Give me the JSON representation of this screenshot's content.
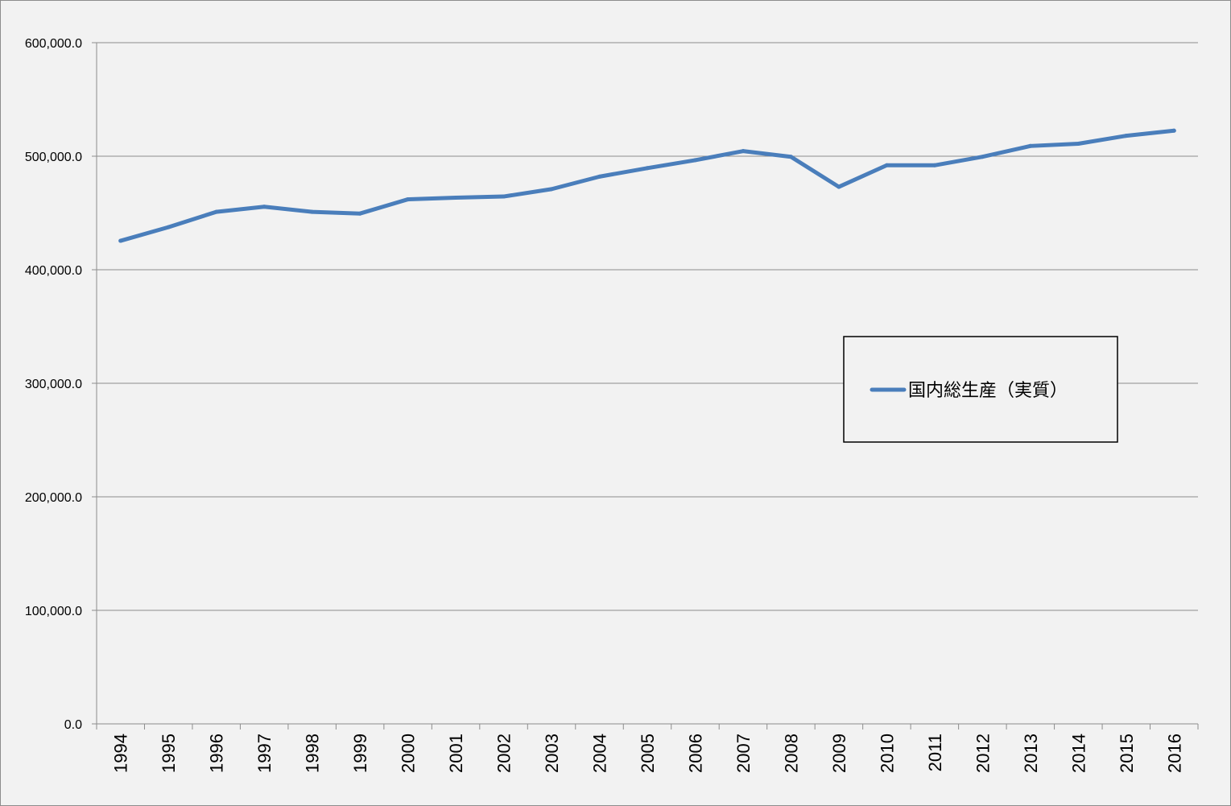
{
  "chart_data": {
    "type": "line",
    "title": "",
    "xlabel": "",
    "ylabel": "",
    "categories": [
      "1994",
      "1995",
      "1996",
      "1997",
      "1998",
      "1999",
      "2000",
      "2001",
      "2002",
      "2003",
      "2004",
      "2005",
      "2006",
      "2007",
      "2008",
      "2009",
      "2010",
      "2011",
      "2012",
      "2013",
      "2014",
      "2015",
      "2016"
    ],
    "series": [
      {
        "name": "国内総生産（実質）",
        "color": "#4a7ebb",
        "values": [
          425500,
          437500,
          451000,
          455500,
          451000,
          449500,
          462000,
          463500,
          464500,
          471000,
          482000,
          489500,
          496500,
          504500,
          499500,
          473000,
          492000,
          492000,
          499500,
          509000,
          511000,
          518000,
          522500
        ]
      }
    ],
    "ylim": [
      0,
      600000
    ],
    "yticks": [
      {
        "value": 0,
        "label": "0.0"
      },
      {
        "value": 100000,
        "label": "100,000.0"
      },
      {
        "value": 200000,
        "label": "200,000.0"
      },
      {
        "value": 300000,
        "label": "300,000.0"
      },
      {
        "value": 400000,
        "label": "400,000.0"
      },
      {
        "value": 500000,
        "label": "500,000.0"
      },
      {
        "value": 600000,
        "label": "600,000.0"
      }
    ],
    "grid": true,
    "legend_position": "right-middle",
    "background": "#f2f2f2"
  }
}
